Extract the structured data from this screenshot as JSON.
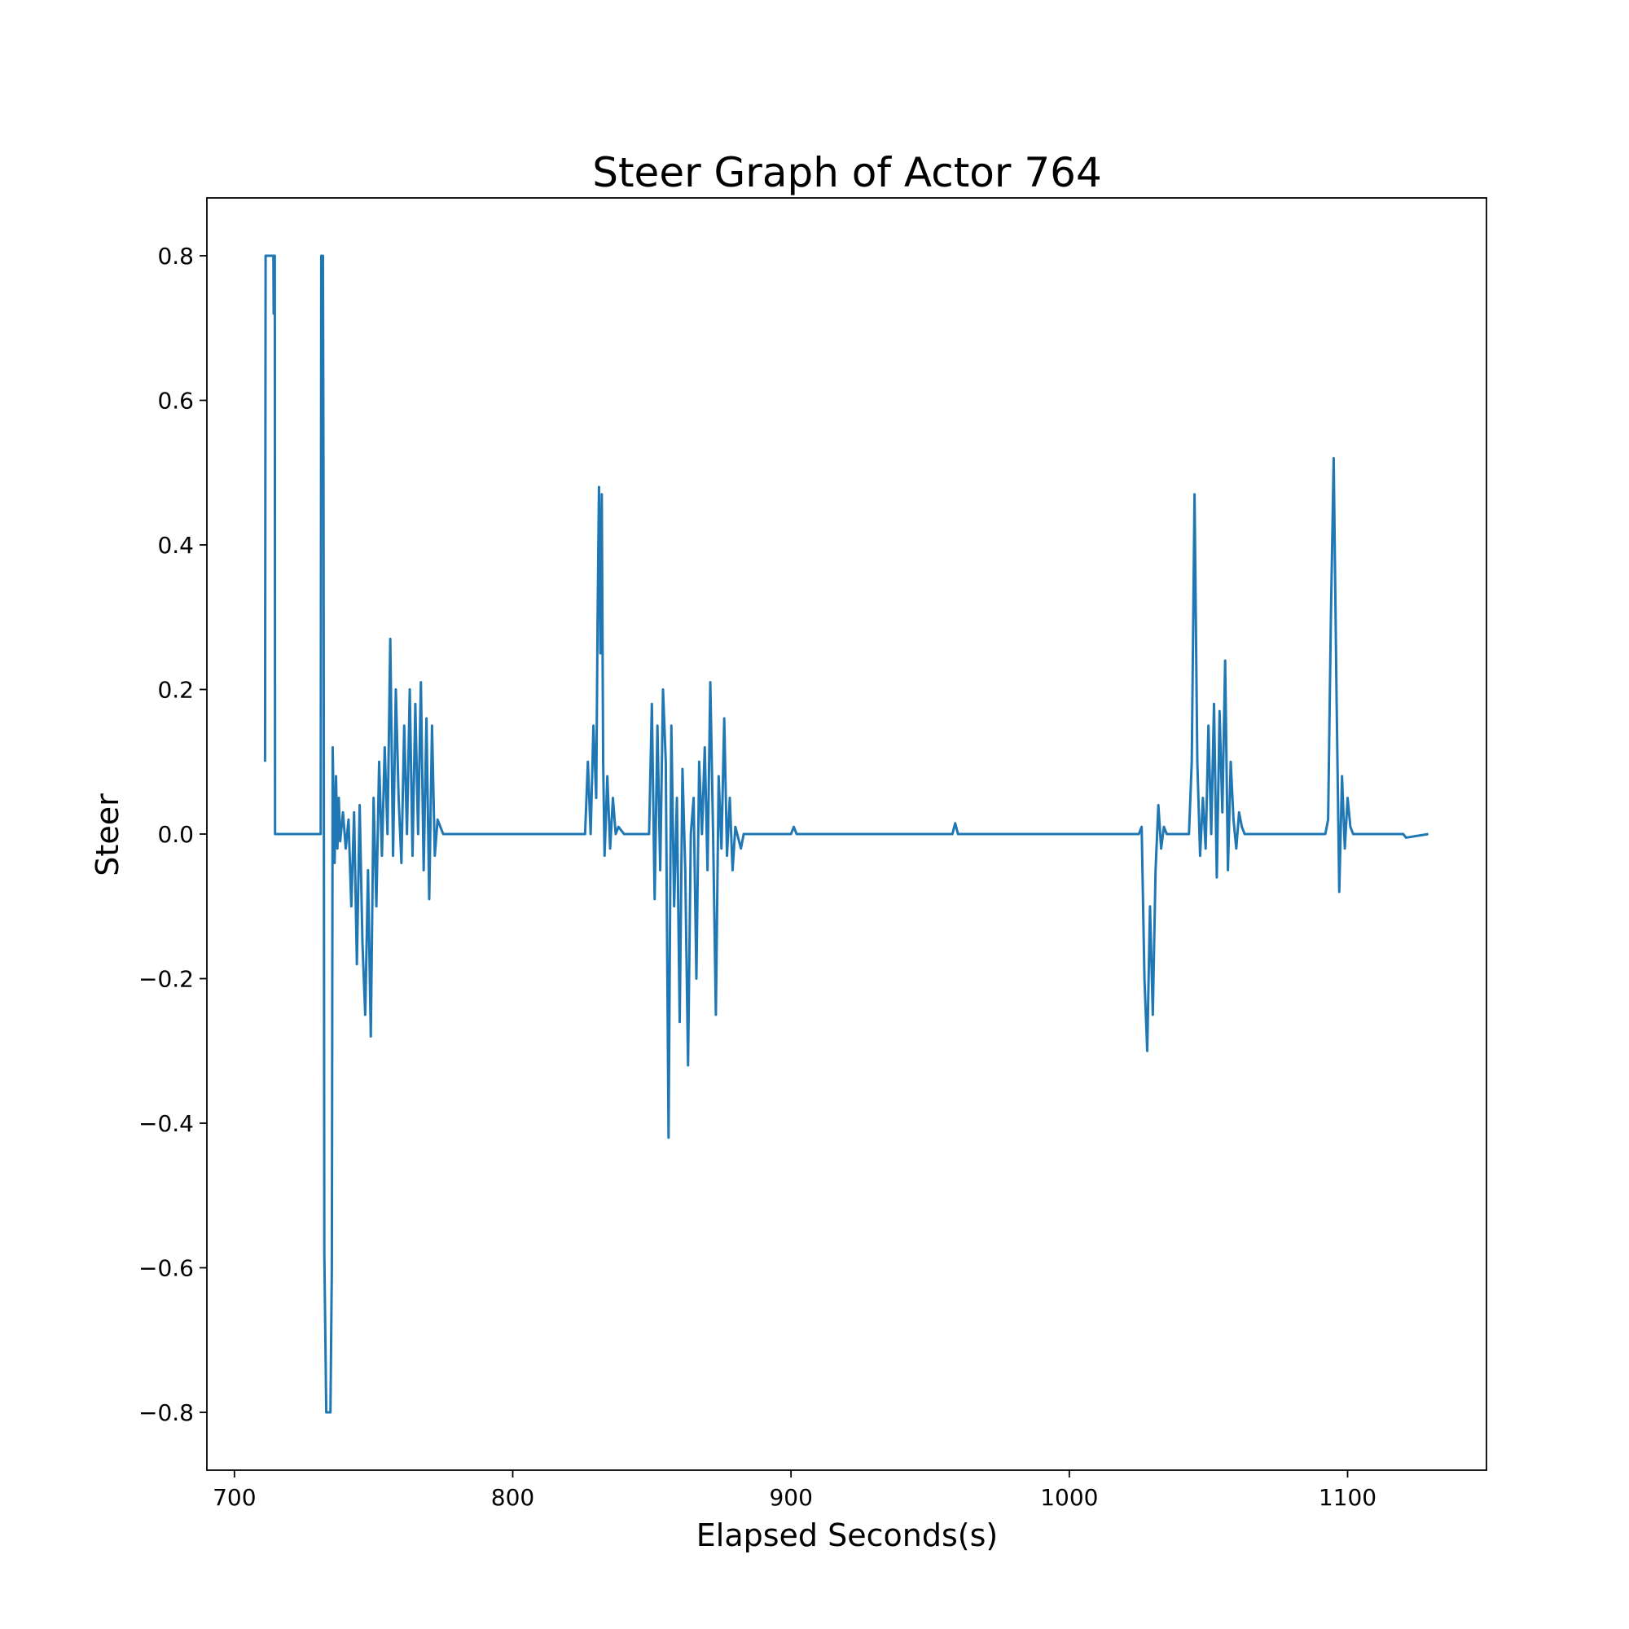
{
  "chart_data": {
    "type": "line",
    "title": "Steer Graph of Actor 764",
    "x_label": "Elapsed Seconds(s)",
    "y_label": "Steer",
    "color": "#1f77b4",
    "x": [
      711,
      711.2,
      714,
      714.1,
      714.2,
      714.5,
      714.6,
      731,
      731.2,
      731.5,
      731.8,
      732,
      732.3,
      733,
      734.5,
      735,
      735.3,
      736,
      736.5,
      737,
      737.5,
      738,
      739,
      740,
      741,
      742,
      743,
      744,
      745,
      746,
      747,
      748,
      749,
      750,
      751,
      752,
      753,
      754,
      755,
      756,
      757,
      758,
      759,
      760,
      761,
      762,
      763,
      764,
      765,
      766,
      767,
      768,
      769,
      770,
      771,
      772,
      773,
      775,
      790,
      826,
      827,
      828,
      829,
      830,
      830.5,
      831,
      831.5,
      832,
      832.5,
      833,
      834,
      835,
      836,
      837,
      838,
      840,
      849,
      850,
      851,
      852,
      853,
      854,
      855,
      856,
      857,
      858,
      859,
      860,
      861,
      862,
      863,
      864,
      865,
      866,
      867,
      868,
      869,
      870,
      871,
      872,
      873,
      874,
      875,
      876,
      877,
      878,
      879,
      880,
      882,
      883,
      900,
      901,
      902,
      958,
      959,
      960,
      1025,
      1026,
      1027,
      1028,
      1029,
      1030,
      1031,
      1032,
      1033,
      1034,
      1035,
      1043,
      1044,
      1045,
      1046,
      1047,
      1048,
      1049,
      1050,
      1051,
      1052,
      1053,
      1054,
      1055,
      1056,
      1057,
      1058,
      1059,
      1060,
      1061,
      1062,
      1063,
      1092,
      1093,
      1094,
      1095,
      1096,
      1097,
      1098,
      1099,
      1100,
      1101,
      1102,
      1120,
      1121,
      1129
    ],
    "values": [
      0.1,
      0.8,
      0.8,
      0.72,
      0.8,
      0.8,
      0,
      0,
      0.8,
      0.7,
      0.8,
      0.5,
      -0.58,
      -0.8,
      -0.8,
      -0.6,
      0.12,
      -0.04,
      0.08,
      -0.02,
      0.05,
      -0.01,
      0.03,
      -0.02,
      0.02,
      -0.1,
      0.03,
      -0.18,
      0.04,
      -0.15,
      -0.25,
      -0.05,
      -0.28,
      0.05,
      -0.1,
      0.1,
      -0.03,
      0.12,
      0,
      0.27,
      -0.03,
      0.2,
      0.05,
      -0.04,
      0.15,
      0,
      0.2,
      -0.03,
      0.18,
      0,
      0.21,
      -0.05,
      0.16,
      -0.09,
      0.15,
      -0.03,
      0.02,
      0,
      0,
      0,
      0.1,
      0,
      0.15,
      0.05,
      0.3,
      0.48,
      0.25,
      0.47,
      0.1,
      -0.03,
      0.08,
      -0.02,
      0.05,
      0,
      0.01,
      0,
      0,
      0.18,
      -0.09,
      0.15,
      -0.05,
      0.2,
      0.1,
      -0.42,
      0.15,
      -0.1,
      0.05,
      -0.26,
      0.09,
      -0.05,
      -0.32,
      0,
      0.05,
      -0.2,
      0.1,
      0,
      0.12,
      -0.05,
      0.21,
      0,
      -0.25,
      0.08,
      -0.02,
      0.16,
      -0.03,
      0.05,
      -0.05,
      0.01,
      -0.02,
      0,
      0,
      0.01,
      0,
      0,
      0.015,
      0,
      0,
      0.01,
      -0.2,
      -0.3,
      -0.1,
      -0.25,
      -0.05,
      0.04,
      -0.02,
      0.01,
      0,
      0,
      0.1,
      0.47,
      0.1,
      -0.03,
      0.05,
      -0.02,
      0.15,
      0,
      0.18,
      -0.06,
      0.17,
      0.03,
      0.24,
      -0.05,
      0.1,
      0.02,
      -0.02,
      0.03,
      0.01,
      0,
      0,
      0.02,
      0.3,
      0.52,
      0.2,
      -0.08,
      0.08,
      -0.02,
      0.05,
      0.01,
      0,
      0,
      -0.005,
      0
    ],
    "xlim": [
      690.1,
      1149.9
    ],
    "ylim": [
      -0.88,
      0.88
    ],
    "xticks": [
      700,
      800,
      900,
      1000,
      1100
    ],
    "yticks": [
      {
        "value": -0.8,
        "label": "−0.8"
      },
      {
        "value": -0.6,
        "label": "−0.6"
      },
      {
        "value": -0.4,
        "label": "−0.4"
      },
      {
        "value": -0.2,
        "label": "−0.2"
      },
      {
        "value": 0,
        "label": "0.0"
      },
      0.2,
      0.4,
      0.6,
      0.8
    ],
    "grid": false
  }
}
